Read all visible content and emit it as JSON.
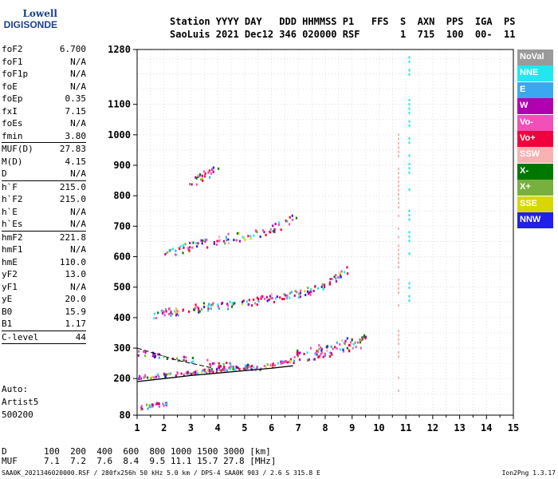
{
  "logo": {
    "line1": "Lowell",
    "line2": "DIGISONDE"
  },
  "header": {
    "line1": "Station YYYY DAY   DDD HHMMSS P1   FFS  S  AXN  PPS  IGA  PS",
    "line2": "SaoLuis 2021 Dec12 346 020000 RSF       1  715  100  00-  11"
  },
  "params": [
    {
      "name": "foF2",
      "value": "6.700"
    },
    {
      "name": "foF1",
      "value": "N/A"
    },
    {
      "name": "foF1p",
      "value": "N/A"
    },
    {
      "name": "foE",
      "value": "N/A"
    },
    {
      "name": "foEp",
      "value": "0.35"
    },
    {
      "name": "fxI",
      "value": "7.15"
    },
    {
      "name": "foEs",
      "value": "N/A"
    },
    {
      "name": "fmin",
      "value": "3.80",
      "sep": true
    },
    {
      "name": "MUF(D)",
      "value": "27.83"
    },
    {
      "name": "M(D)",
      "value": "4.15"
    },
    {
      "name": "D",
      "value": "N/A",
      "sep": true
    },
    {
      "name": "h`F",
      "value": "215.0"
    },
    {
      "name": "h`F2",
      "value": "215.0"
    },
    {
      "name": "h`E",
      "value": "N/A"
    },
    {
      "name": "h`Es",
      "value": "N/A",
      "sep": true
    },
    {
      "name": "hmF2",
      "value": "221.8"
    },
    {
      "name": "hmF1",
      "value": "N/A"
    },
    {
      "name": "hmE",
      "value": "110.0"
    },
    {
      "name": "yF2",
      "value": "13.0"
    },
    {
      "name": "yF1",
      "value": "N/A"
    },
    {
      "name": "yE",
      "value": "20.0"
    },
    {
      "name": "B0",
      "value": "15.9"
    },
    {
      "name": "B1",
      "value": "1.17",
      "sep": true
    },
    {
      "name": "C-level",
      "value": "44",
      "sep": true
    }
  ],
  "autoscaling": {
    "label": "Auto:",
    "software": "Artist5",
    "version": "500200"
  },
  "muf_table": {
    "d_label": "D",
    "d_values": [
      "100",
      "200",
      "400",
      "600",
      "800",
      "1000",
      "1500",
      "3000"
    ],
    "d_unit": "[km]",
    "muf_label": "MUF",
    "muf_values": [
      "7.1",
      "7.2",
      "7.6",
      "8.4",
      "9.5",
      "11.1",
      "15.7",
      "27.8"
    ],
    "muf_unit": "[MHz]"
  },
  "footer": "SAA0K_2021346020000.RSF / 280fx256h 50 kHz 5.0 km / DPS-4 SAA0K 903 / 2.6 S 315.8 E",
  "version": "Ion2Png 1.3.17",
  "legend": [
    {
      "label": "NoVal",
      "color": "#9a9a9a"
    },
    {
      "label": "NNE",
      "color": "#24e6f0"
    },
    {
      "label": "E",
      "color": "#3aa8f0"
    },
    {
      "label": "W",
      "color": "#b000b0"
    },
    {
      "label": "Vo-",
      "color": "#f050b8"
    },
    {
      "label": "Vo+",
      "color": "#f0003c"
    },
    {
      "label": "SSW",
      "color": "#f8b2b2"
    },
    {
      "label": "X-",
      "color": "#007800"
    },
    {
      "label": "X+",
      "color": "#78b040"
    },
    {
      "label": "SSE",
      "color": "#d8d800"
    },
    {
      "label": "NNW",
      "color": "#2020e8"
    }
  ],
  "chart_data": {
    "type": "scatter",
    "title": "",
    "xlabel": "",
    "ylabel": "",
    "x_ticks": [
      1,
      2,
      3,
      4,
      5,
      6,
      7,
      8,
      9,
      10,
      11,
      12,
      13,
      14,
      15
    ],
    "y_ticks": [
      80,
      200,
      300,
      400,
      500,
      600,
      700,
      800,
      900,
      1000,
      1100,
      1280
    ],
    "xlim": [
      1,
      15
    ],
    "ylim": [
      80,
      1280
    ],
    "grid": true,
    "legend_position": "right",
    "traces": [
      {
        "name": "F-trace main",
        "x": [
          1.0,
          2.0,
          3.0,
          4.0,
          5.0,
          6.0,
          6.7,
          7.2,
          8.0,
          8.5,
          9.0,
          9.5
        ],
        "y": [
          205,
          212,
          220,
          230,
          240,
          245,
          260,
          275,
          285,
          300,
          310,
          320
        ]
      },
      {
        "name": "F-trace second hop",
        "x": [
          1.6,
          2.5,
          3.5,
          4.5,
          5.5,
          6.2,
          7.0,
          7.6,
          8.2,
          8.7,
          9.0
        ],
        "y": [
          410,
          420,
          432,
          440,
          455,
          465,
          475,
          490,
          520,
          545,
          565
        ]
      },
      {
        "name": "F-trace third hop",
        "x": [
          2.0,
          2.7,
          3.5,
          4.2,
          4.9,
          5.5,
          6.0,
          6.5,
          6.9
        ],
        "y": [
          605,
          625,
          640,
          655,
          665,
          675,
          685,
          710,
          735
        ]
      },
      {
        "name": "F-trace fourth hop",
        "x": [
          2.9,
          3.2,
          3.6,
          4.0
        ],
        "y": [
          830,
          850,
          870,
          885
        ]
      },
      {
        "name": "F-trace lower",
        "x": [
          1.0,
          1.8,
          2.6,
          3.4,
          4.2,
          5.0,
          5.6
        ],
        "y": [
          285,
          275,
          265,
          255,
          245,
          235,
          230
        ]
      },
      {
        "name": "Low-frequency echoes",
        "x": [
          1.0,
          1.3,
          1.6,
          1.9,
          2.1
        ],
        "y": [
          105,
          108,
          112,
          118,
          120
        ]
      }
    ],
    "profile_line": {
      "name": "profile",
      "x": [
        1.0,
        2.0,
        3.0,
        4.0,
        5.0,
        6.0,
        6.8
      ],
      "y": [
        190,
        200,
        210,
        218,
        226,
        234,
        242
      ]
    },
    "interference_lines": [
      {
        "x": 10.7,
        "y_from": 150,
        "y_to": 1050,
        "color": "SSW"
      },
      {
        "x": 11.1,
        "y_from": 460,
        "y_to": 1270,
        "color": "NNE"
      }
    ]
  }
}
